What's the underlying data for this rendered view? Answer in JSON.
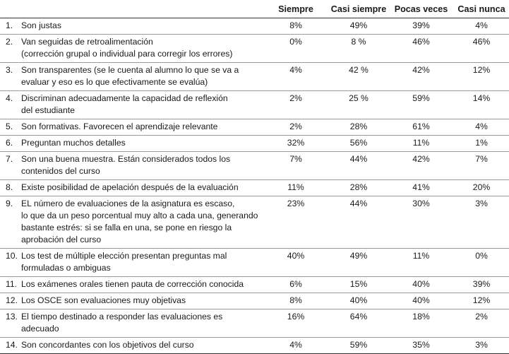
{
  "table": {
    "headers": [
      "",
      "Siempre",
      "Casi siempre",
      "Pocas veces",
      "Casi nunca"
    ],
    "rows": [
      {
        "num": "1.",
        "text": "Son justas",
        "values": [
          "8%",
          "49%",
          "39%",
          "4%"
        ]
      },
      {
        "num": "2.",
        "text": "Van seguidas de retroalimentación\n(corrección grupal o individual para corregir los errores)",
        "values": [
          "0%",
          "8 %",
          "46%",
          "46%"
        ]
      },
      {
        "num": "3.",
        "text": "Son transparentes (se le cuenta al alumno lo que se va a\nevaluar y eso es lo que efectivamente se evalúa)",
        "values": [
          "4%",
          "42 %",
          "42%",
          "12%"
        ]
      },
      {
        "num": "4.",
        "text": "Discriminan adecuadamente la capacidad de reflexión\ndel estudiante",
        "values": [
          "2%",
          "25 %",
          "59%",
          "14%"
        ]
      },
      {
        "num": "5.",
        "text": "Son formativas. Favorecen el aprendizaje relevante",
        "values": [
          "2%",
          "28%",
          "61%",
          "4%"
        ]
      },
      {
        "num": "6.",
        "text": "Preguntan muchos detalles",
        "values": [
          "32%",
          "56%",
          "11%",
          "1%"
        ]
      },
      {
        "num": "7.",
        "text": "Son una buena muestra. Están considerados todos los\ncontenidos del curso",
        "values": [
          "7%",
          "44%",
          "42%",
          "7%"
        ]
      },
      {
        "num": "8.",
        "text": "Existe posibilidad de apelación después de la evaluación",
        "values": [
          "11%",
          "28%",
          "41%",
          "20%"
        ]
      },
      {
        "num": "9.",
        "text": "EL número de evaluaciones de la asignatura es escaso,\nlo que da un peso porcentual muy alto a cada una, generando\nbastante estrés: si se falla en una, se pone en riesgo la\naprobación del curso",
        "values": [
          "23%",
          "44%",
          "30%",
          "3%"
        ]
      },
      {
        "num": "10.",
        "text": "Los test de múltiple elección presentan preguntas mal\nformuladas o ambiguas",
        "values": [
          "40%",
          "49%",
          "11%",
          "0%"
        ]
      },
      {
        "num": "11.",
        "text": "Los exámenes orales tienen pauta de corrección conocida",
        "values": [
          "6%",
          "15%",
          "40%",
          "39%"
        ]
      },
      {
        "num": "12.",
        "text": "Los OSCE son evaluaciones muy objetivas",
        "values": [
          "8%",
          "40%",
          "40%",
          "12%"
        ]
      },
      {
        "num": "13.",
        "text": "El tiempo destinado a responder las evaluaciones es adecuado",
        "values": [
          "16%",
          "64%",
          "18%",
          "2%"
        ]
      },
      {
        "num": "14.",
        "text": "Son concordantes con los objetivos del curso",
        "values": [
          "4%",
          "59%",
          "35%",
          "3%"
        ]
      }
    ]
  }
}
